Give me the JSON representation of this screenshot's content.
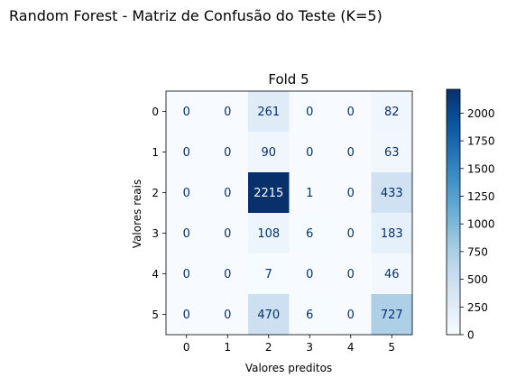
{
  "figure": {
    "suptitle": "Random Forest - Matriz de Confusão do Teste (K=5)"
  },
  "chart_data": {
    "type": "heatmap",
    "title": "Fold 5",
    "xlabel": "Valores preditos",
    "ylabel": "Valores reais",
    "x_categories": [
      "0",
      "1",
      "2",
      "3",
      "4",
      "5"
    ],
    "y_categories": [
      "0",
      "1",
      "2",
      "3",
      "4",
      "5"
    ],
    "values": [
      [
        0,
        0,
        261,
        0,
        0,
        82
      ],
      [
        0,
        0,
        90,
        0,
        0,
        63
      ],
      [
        0,
        0,
        2215,
        1,
        0,
        433
      ],
      [
        0,
        0,
        108,
        6,
        0,
        183
      ],
      [
        0,
        0,
        7,
        0,
        0,
        46
      ],
      [
        0,
        0,
        470,
        6,
        0,
        727
      ]
    ],
    "colormap": "Blues",
    "colorbar": {
      "range": [
        0,
        2215
      ],
      "ticks": [
        0,
        250,
        500,
        750,
        1000,
        1250,
        1500,
        1750,
        2000
      ]
    },
    "colors": {
      "low": "#f7fbff",
      "high": "#08306b",
      "text_light": "#f7fbff",
      "text_dark": "#08306b"
    }
  }
}
